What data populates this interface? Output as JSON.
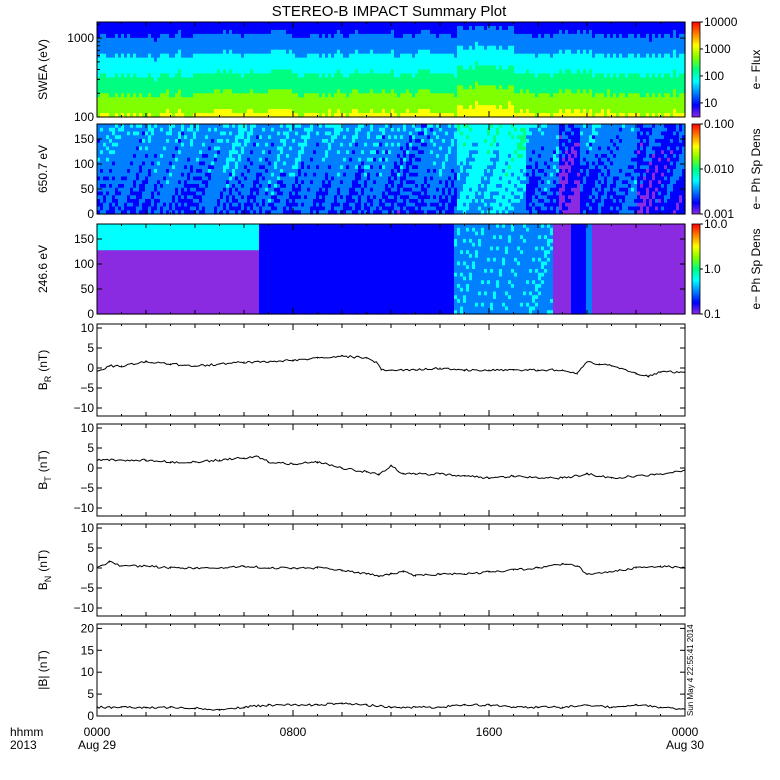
{
  "title": "STEREO-B IMPACT Summary Plot",
  "colors": {
    "line": "#000000",
    "spectrogram_palette": [
      "#8a2be2",
      "#0000ff",
      "#0080ff",
      "#00ffff",
      "#00ff80",
      "#80ff00",
      "#ffff00",
      "#ff8000",
      "#ff0000"
    ]
  },
  "time_axis": {
    "row_labels": [
      "hhmm",
      "2013"
    ],
    "ticks": [
      {
        "hours": 0,
        "label": "0000",
        "sublabel": "Aug 29"
      },
      {
        "hours": 8,
        "label": "0800",
        "sublabel": ""
      },
      {
        "hours": 16,
        "label": "1600",
        "sublabel": ""
      },
      {
        "hours": 24,
        "label": "0000",
        "sublabel": "Aug 30"
      }
    ],
    "range_hours": [
      0,
      24
    ]
  },
  "timestamp": "Sun May 4 22:55:41 2014",
  "chart_data": [
    {
      "type": "heatmap",
      "ylabel": "SWEA (eV)",
      "yscale": "log",
      "yticks": [
        "100",
        "1000"
      ],
      "ylim": [
        100,
        1600
      ],
      "colorbar_label": "e− Flux",
      "colorbar_ticks": [
        "10",
        "100",
        "1000",
        "10000"
      ],
      "colorbar_scale": "log",
      "colorbar_range": [
        3,
        10000
      ]
    },
    {
      "type": "heatmap",
      "ylabel": "650.7 eV",
      "yticks": [
        "0",
        "50",
        "100",
        "150"
      ],
      "ylim": [
        0,
        180
      ],
      "colorbar_label": "e− Ph Sp Dens",
      "colorbar_ticks": [
        "0.001",
        "0.010",
        "0.100"
      ],
      "colorbar_scale": "log",
      "colorbar_range": [
        0.001,
        0.1
      ]
    },
    {
      "type": "heatmap",
      "ylabel": "246.6 eV",
      "yticks": [
        "0",
        "50",
        "100",
        "150"
      ],
      "ylim": [
        0,
        180
      ],
      "colorbar_label": "e− Ph Sp Dens",
      "colorbar_ticks": [
        "0.1",
        "1.0",
        "10.0"
      ],
      "colorbar_scale": "log",
      "colorbar_range": [
        0.1,
        10
      ]
    },
    {
      "type": "line",
      "ylabel": "B",
      "ylabel_sub": "R",
      "ylabel_unit": "(nT)",
      "ylim": [
        -12,
        11
      ],
      "yticks": [
        "−10",
        "−5",
        "0",
        "5",
        "10"
      ],
      "x": [
        0,
        0.5,
        1,
        2,
        3,
        4,
        5,
        6,
        7,
        8,
        9,
        10,
        11,
        11.4,
        11.6,
        12,
        13,
        14,
        15,
        16,
        17,
        18,
        19,
        19.6,
        20,
        20.5,
        21,
        22,
        22.5,
        23,
        24
      ],
      "y": [
        -1,
        0.5,
        0.5,
        1.5,
        1,
        0.5,
        1,
        1.5,
        1.5,
        2,
        2.5,
        3,
        2.5,
        1.5,
        -0.5,
        -0.5,
        -0.5,
        0,
        -0.5,
        -0.5,
        -0.5,
        -0.5,
        -0.5,
        -1.5,
        1.5,
        1,
        0.5,
        -1.5,
        -2,
        -1,
        -1
      ]
    },
    {
      "type": "line",
      "ylabel": "B",
      "ylabel_sub": "T",
      "ylabel_unit": "(nT)",
      "ylim": [
        -12,
        11
      ],
      "yticks": [
        "−10",
        "−5",
        "0",
        "5",
        "10"
      ],
      "x": [
        0,
        1,
        2,
        3,
        4,
        5,
        6,
        6.5,
        7,
        8,
        9,
        10,
        11,
        11.5,
        12,
        12.5,
        13,
        14,
        15,
        16,
        17,
        18,
        19,
        20,
        21,
        22,
        23,
        24
      ],
      "y": [
        2,
        2,
        2,
        1.5,
        1.5,
        2,
        2.5,
        3,
        1.5,
        1,
        1.5,
        0,
        -1,
        -1.5,
        0.5,
        -1.5,
        -1.5,
        -1.5,
        -2,
        -2.5,
        -2,
        -2.5,
        -2.5,
        -1.5,
        -2.5,
        -2,
        -1.5,
        -0.5
      ]
    },
    {
      "type": "line",
      "ylabel": "B",
      "ylabel_sub": "N",
      "ylabel_unit": "(nT)",
      "ylim": [
        -12,
        11
      ],
      "yticks": [
        "−10",
        "−5",
        "0",
        "5",
        "10"
      ],
      "x": [
        0,
        0.5,
        1,
        2,
        3,
        4,
        5,
        6,
        7,
        8,
        9,
        10,
        11,
        11.5,
        12,
        12.5,
        13,
        14,
        15,
        16,
        17,
        18,
        19,
        19.6,
        20,
        21,
        22,
        23,
        24
      ],
      "y": [
        0,
        1.5,
        0.5,
        0.5,
        0,
        0,
        0,
        0.5,
        0,
        0,
        0,
        -0.5,
        -1.5,
        -2,
        -1.5,
        -1,
        -2,
        -1.5,
        -1.5,
        -1,
        -0.5,
        0,
        1,
        0.5,
        -1.5,
        -1,
        0,
        0.5,
        0
      ]
    },
    {
      "type": "line",
      "ylabel": "|B| (nT)",
      "ylim": [
        0,
        21
      ],
      "yticks": [
        "0",
        "5",
        "10",
        "15",
        "20"
      ],
      "x": [
        0,
        1,
        2,
        3,
        4,
        5,
        6,
        7,
        8,
        9,
        10,
        11,
        12,
        13,
        14,
        15,
        16,
        17,
        18,
        19,
        20,
        21,
        22,
        23,
        24
      ],
      "y": [
        2,
        2,
        2,
        2,
        1.8,
        1.5,
        2,
        2.5,
        2.5,
        2.5,
        3,
        2.5,
        2,
        2,
        2,
        2.5,
        2.5,
        2,
        2,
        2,
        2.5,
        2,
        2.5,
        2,
        1.5
      ]
    }
  ]
}
